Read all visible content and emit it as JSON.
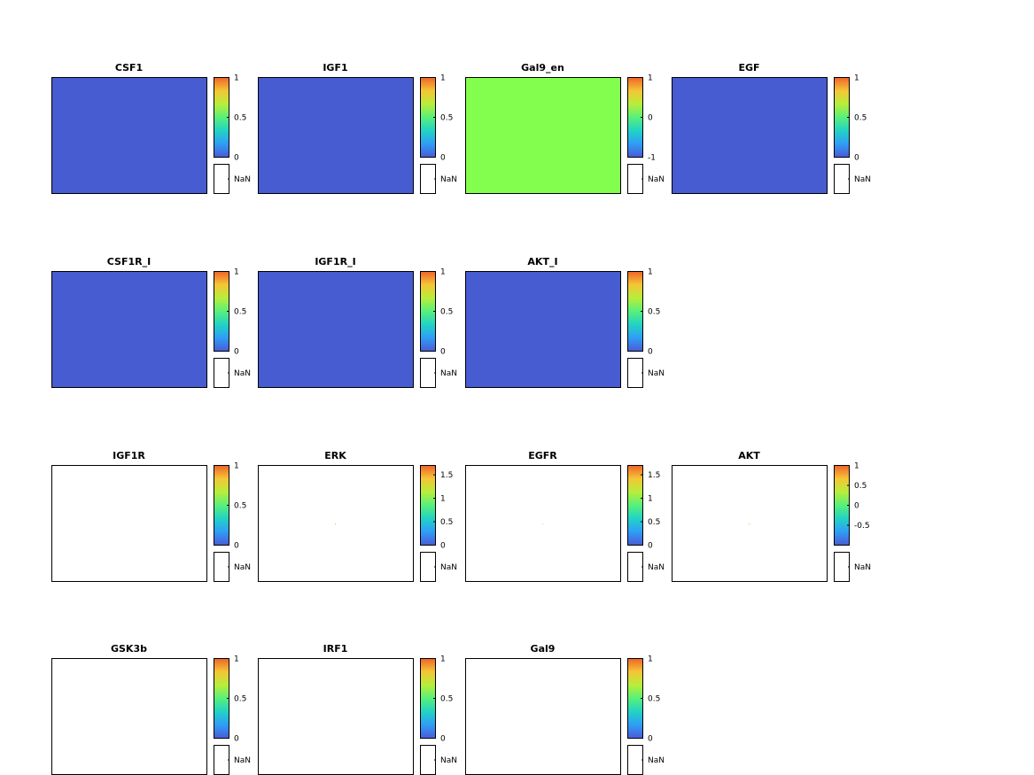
{
  "colors": {
    "background": "#ffffff",
    "axis_border": "#000000",
    "nan_box": "#ffffff",
    "colormap_rainbow": [
      "#4a5bd6",
      "#2f9df6",
      "#21d3c5",
      "#58f07a",
      "#b8ee3a",
      "#f4c636",
      "#f0642a"
    ]
  },
  "chart_data": [
    {
      "type": "heatmap",
      "title": "CSF1",
      "fill": "#465cd0",
      "clim": [
        0,
        1
      ],
      "colorbar_ticks": [
        "1",
        "0.5",
        "0"
      ],
      "nan_label": "NaN"
    },
    {
      "type": "heatmap",
      "title": "IGF1",
      "fill": "#465cd0",
      "clim": [
        0,
        1
      ],
      "colorbar_ticks": [
        "1",
        "0.5",
        "0"
      ],
      "nan_label": "NaN"
    },
    {
      "type": "heatmap",
      "title": "Gal9_en",
      "fill": "#84fe4e",
      "clim": [
        -1,
        1
      ],
      "colorbar_ticks": [
        "1",
        "0",
        "-1"
      ],
      "nan_label": "NaN"
    },
    {
      "type": "heatmap",
      "title": "EGF",
      "fill": "#465cd0",
      "clim": [
        0,
        1
      ],
      "colorbar_ticks": [
        "1",
        "0.5",
        "0"
      ],
      "nan_label": "NaN"
    },
    {
      "type": "heatmap",
      "title": "CSF1R_I",
      "fill": "#465cd0",
      "clim": [
        0,
        1
      ],
      "colorbar_ticks": [
        "1",
        "0.5",
        "0"
      ],
      "nan_label": "NaN"
    },
    {
      "type": "heatmap",
      "title": "IGF1R_I",
      "fill": "#465cd0",
      "clim": [
        0,
        1
      ],
      "colorbar_ticks": [
        "1",
        "0.5",
        "0"
      ],
      "nan_label": "NaN"
    },
    {
      "type": "heatmap",
      "title": "AKT_I",
      "fill": "#465cd0",
      "clim": [
        0,
        1
      ],
      "colorbar_ticks": [
        "1",
        "0.5",
        "0"
      ],
      "nan_label": "NaN"
    },
    {
      "type": "heatmap",
      "title": "IGF1R",
      "fill": "#ffffff",
      "clim": [
        0,
        1
      ],
      "colorbar_ticks": [
        "1",
        "0.5",
        "0"
      ],
      "nan_label": "NaN"
    },
    {
      "type": "heatmap",
      "title": "ERK",
      "fill": "#ffffff",
      "dot": true,
      "dot_color": "#f4c636",
      "clim": [
        0,
        1.7
      ],
      "colorbar_ticks": [
        "1.5",
        "1",
        "0.5",
        "0"
      ],
      "nan_label": "NaN"
    },
    {
      "type": "heatmap",
      "title": "EGFR",
      "fill": "#ffffff",
      "dot": true,
      "dot_color": "#d8d8d8",
      "clim": [
        0,
        1.7
      ],
      "colorbar_ticks": [
        "1.5",
        "1",
        "0.5",
        "0"
      ],
      "nan_label": "NaN"
    },
    {
      "type": "heatmap",
      "title": "AKT",
      "fill": "#ffffff",
      "dot": true,
      "dot_color": "#f4c636",
      "clim": [
        -1,
        1
      ],
      "colorbar_ticks": [
        "1",
        "0.5",
        "0",
        "-0.5"
      ],
      "nan_label": "NaN"
    },
    {
      "type": "heatmap",
      "title": "GSK3b",
      "fill": "#ffffff",
      "clim": [
        0,
        1
      ],
      "colorbar_ticks": [
        "1",
        "0.5",
        "0"
      ],
      "nan_label": "NaN"
    },
    {
      "type": "heatmap",
      "title": "IRF1",
      "fill": "#ffffff",
      "clim": [
        0,
        1
      ],
      "colorbar_ticks": [
        "1",
        "0.5",
        "0"
      ],
      "nan_label": "NaN"
    },
    {
      "type": "heatmap",
      "title": "Gal9",
      "fill": "#ffffff",
      "clim": [
        0,
        1
      ],
      "colorbar_ticks": [
        "1",
        "0.5",
        "0"
      ],
      "nan_label": "NaN"
    }
  ]
}
